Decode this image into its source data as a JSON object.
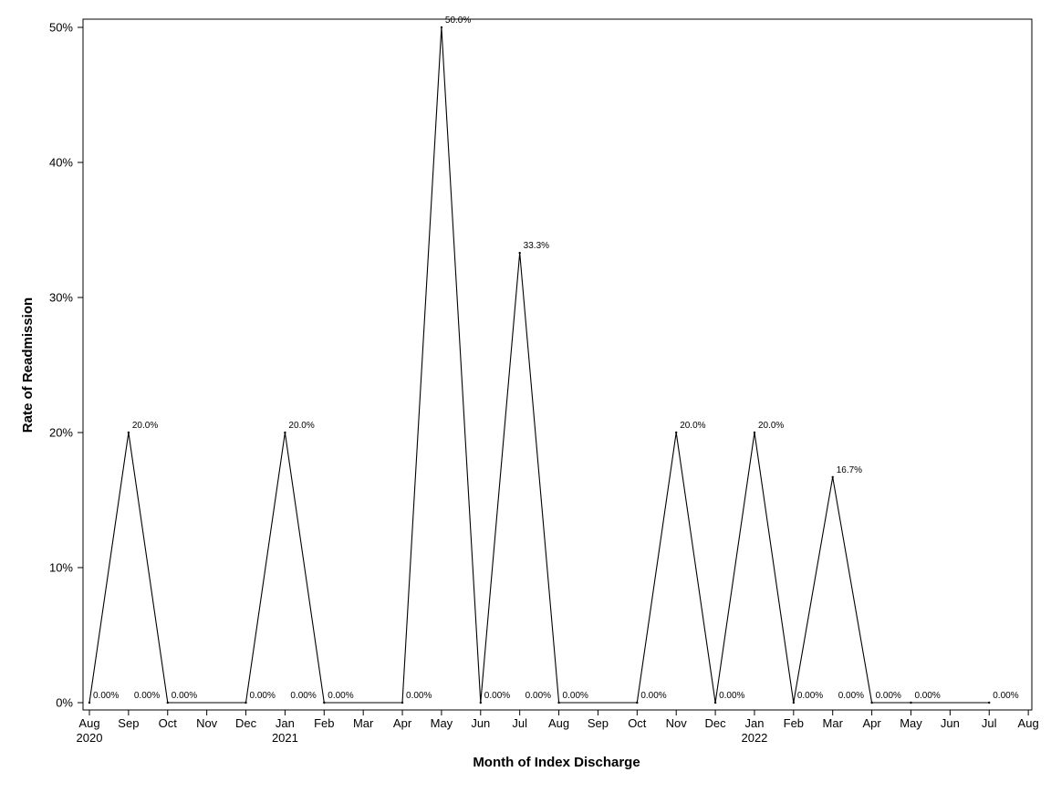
{
  "chart_data": {
    "type": "line",
    "title": "",
    "xlabel": "Month of Index Discharge",
    "ylabel": "Rate of Readmission",
    "ylim": [
      0,
      50
    ],
    "y_ticks": [
      "0%",
      "10%",
      "20%",
      "30%",
      "40%",
      "50%"
    ],
    "x_ticks": [
      {
        "month": "Aug",
        "year": "2020"
      },
      {
        "month": "Sep",
        "year": ""
      },
      {
        "month": "Oct",
        "year": ""
      },
      {
        "month": "Nov",
        "year": ""
      },
      {
        "month": "Dec",
        "year": ""
      },
      {
        "month": "Jan",
        "year": "2021"
      },
      {
        "month": "Feb",
        "year": ""
      },
      {
        "month": "Mar",
        "year": ""
      },
      {
        "month": "Apr",
        "year": ""
      },
      {
        "month": "May",
        "year": ""
      },
      {
        "month": "Jun",
        "year": ""
      },
      {
        "month": "Jul",
        "year": ""
      },
      {
        "month": "Aug",
        "year": ""
      },
      {
        "month": "Sep",
        "year": ""
      },
      {
        "month": "Oct",
        "year": ""
      },
      {
        "month": "Nov",
        "year": ""
      },
      {
        "month": "Dec",
        "year": ""
      },
      {
        "month": "Jan",
        "year": "2022"
      },
      {
        "month": "Feb",
        "year": ""
      },
      {
        "month": "Mar",
        "year": ""
      },
      {
        "month": "Apr",
        "year": ""
      },
      {
        "month": "May",
        "year": ""
      },
      {
        "month": "Jun",
        "year": ""
      },
      {
        "month": "Jul",
        "year": ""
      },
      {
        "month": "Aug",
        "year": ""
      }
    ],
    "series": [
      {
        "points": [
          {
            "x": "2020-08",
            "y": 0,
            "label": "0.00%"
          },
          {
            "x": "2020-09",
            "y": 20.0,
            "label": "20.0%"
          },
          {
            "x": "2020-10",
            "y": 0,
            "label": "0.00%"
          },
          {
            "x": "2020-12",
            "y": 0,
            "label": "0.00%"
          },
          {
            "x": "2021-01",
            "y": 20.0,
            "label": "20.0%"
          },
          {
            "x": "2021-02",
            "y": 0,
            "label": "0.00%"
          },
          {
            "x": "2021-04",
            "y": 0,
            "label": "0.00%"
          },
          {
            "x": "2021-05",
            "y": 50.0,
            "label": "50.0%"
          },
          {
            "x": "2021-06",
            "y": 0,
            "label": "0.00%"
          },
          {
            "x": "2021-07",
            "y": 33.3,
            "label": "33.3%"
          },
          {
            "x": "2021-08",
            "y": 0,
            "label": "0.00%"
          },
          {
            "x": "2021-10",
            "y": 0,
            "label": "0.00%"
          },
          {
            "x": "2021-11",
            "y": 20.0,
            "label": "20.0%"
          },
          {
            "x": "2021-12",
            "y": 0,
            "label": "0.00%"
          },
          {
            "x": "2022-01",
            "y": 20.0,
            "label": "20.0%"
          },
          {
            "x": "2022-02",
            "y": 0,
            "label": "0.00%"
          },
          {
            "x": "2022-03",
            "y": 16.7,
            "label": "16.7%"
          },
          {
            "x": "2022-04",
            "y": 0,
            "label": "0.00%"
          },
          {
            "x": "2022-05",
            "y": 0,
            "label": "0.00%"
          },
          {
            "x": "2022-07",
            "y": 0,
            "label": "0.00%"
          }
        ]
      }
    ],
    "extra_labels": [
      {
        "x": "2020-09",
        "text": "0.00%"
      },
      {
        "x": "2021-01",
        "text": "0.00%"
      },
      {
        "x": "2021-07",
        "text": "0.00%"
      },
      {
        "x": "2022-03",
        "text": "0.00%"
      }
    ],
    "grid": false,
    "legend": "none",
    "line_color": "#000000"
  }
}
